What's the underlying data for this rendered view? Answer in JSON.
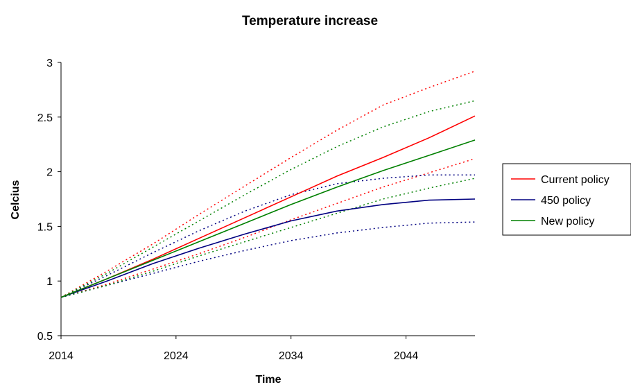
{
  "chart_data": {
    "type": "line",
    "title": "Temperature increase",
    "xlabel": "Time",
    "ylabel": "Celcius",
    "xlim": [
      2014,
      2050
    ],
    "ylim": [
      0.5,
      3
    ],
    "xticks": [
      2014,
      2024,
      2034,
      2044
    ],
    "yticks": [
      0.5,
      1,
      1.5,
      2,
      2.5,
      3
    ],
    "grid": false,
    "legend": "right",
    "x": [
      2014,
      2018,
      2022,
      2026,
      2030,
      2034,
      2038,
      2042,
      2046,
      2050
    ],
    "series": [
      {
        "name": "Current policy",
        "color": "#ff0000",
        "values": [
          0.85,
          1.02,
          1.2,
          1.39,
          1.58,
          1.77,
          1.96,
          2.13,
          2.31,
          2.51
        ],
        "lower": [
          0.85,
          0.97,
          1.11,
          1.25,
          1.4,
          1.56,
          1.71,
          1.86,
          1.99,
          2.12
        ],
        "upper": [
          0.85,
          1.09,
          1.34,
          1.61,
          1.87,
          2.13,
          2.38,
          2.61,
          2.77,
          2.92
        ]
      },
      {
        "name": "450 policy",
        "color": "#000080",
        "values": [
          0.85,
          1.0,
          1.16,
          1.3,
          1.43,
          1.55,
          1.64,
          1.7,
          1.74,
          1.75
        ],
        "lower": [
          0.85,
          0.96,
          1.07,
          1.18,
          1.28,
          1.37,
          1.44,
          1.49,
          1.53,
          1.54
        ],
        "upper": [
          0.85,
          1.05,
          1.26,
          1.46,
          1.64,
          1.79,
          1.89,
          1.94,
          1.97,
          1.97
        ]
      },
      {
        "name": "New policy",
        "color": "#008000",
        "values": [
          0.85,
          1.02,
          1.19,
          1.36,
          1.53,
          1.7,
          1.86,
          2.01,
          2.15,
          2.29
        ],
        "lower": [
          0.85,
          0.96,
          1.09,
          1.23,
          1.36,
          1.49,
          1.62,
          1.75,
          1.85,
          1.94
        ],
        "upper": [
          0.85,
          1.07,
          1.31,
          1.55,
          1.79,
          2.02,
          2.23,
          2.41,
          2.55,
          2.65
        ]
      }
    ]
  }
}
